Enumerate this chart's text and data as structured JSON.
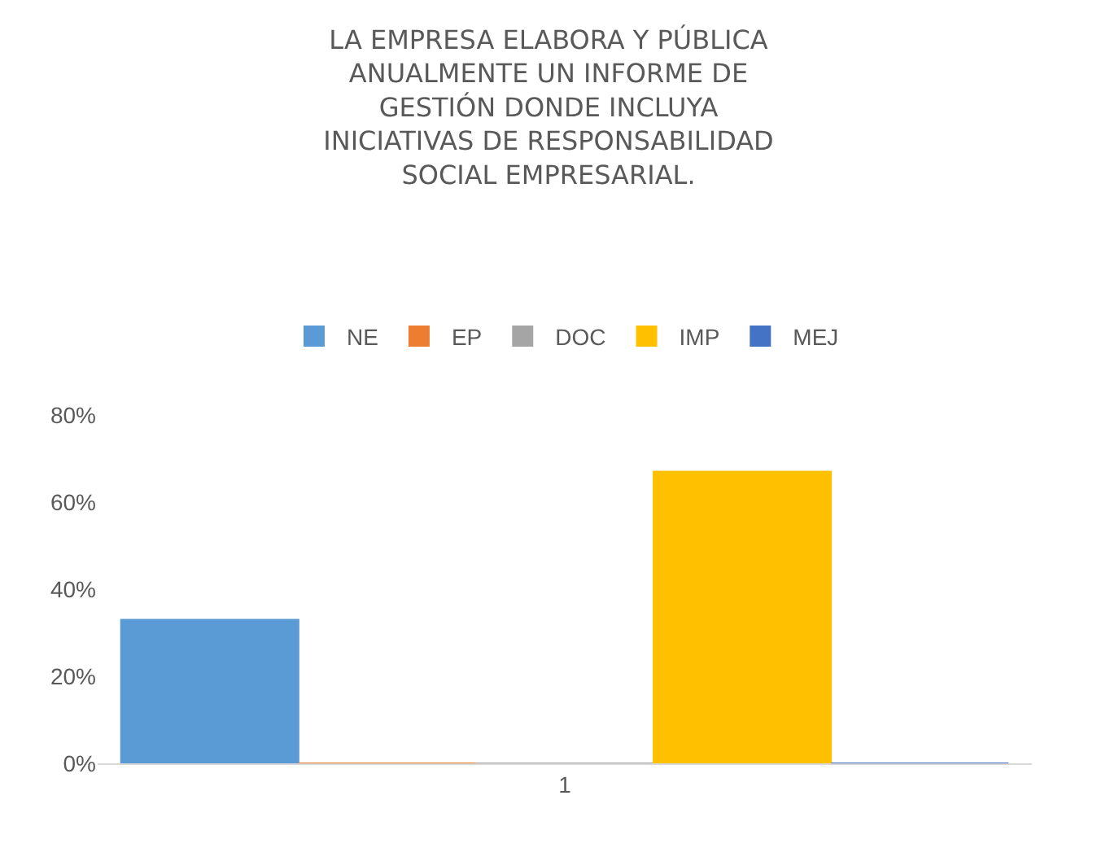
{
  "chart_data": {
    "type": "bar",
    "title": "LA EMPRESA ELABORA Y PÚBLICA ANUALMENTE UN INFORME DE GESTIÓN DONDE INCLUYA INICIATIVAS DE RESPONSABILIDAD SOCIAL EMPRESARIAL.",
    "categories": [
      "1"
    ],
    "series": [
      {
        "name": "NE",
        "color": "#5b9bd5",
        "values": [
          33
        ]
      },
      {
        "name": "EP",
        "color": "#ed7d31",
        "values": [
          0
        ]
      },
      {
        "name": "DOC",
        "color": "#a5a5a5",
        "values": [
          0
        ]
      },
      {
        "name": "IMP",
        "color": "#ffc000",
        "values": [
          67
        ]
      },
      {
        "name": "MEJ",
        "color": "#4472c4",
        "values": [
          0
        ]
      }
    ],
    "ylim": [
      0,
      80
    ],
    "yticks": [
      {
        "value": 0,
        "label": "0%"
      },
      {
        "value": 20,
        "label": "20%"
      },
      {
        "value": 40,
        "label": "40%"
      },
      {
        "value": 60,
        "label": "60%"
      },
      {
        "value": 80,
        "label": "80%"
      }
    ],
    "grid": false,
    "legend": "top"
  }
}
